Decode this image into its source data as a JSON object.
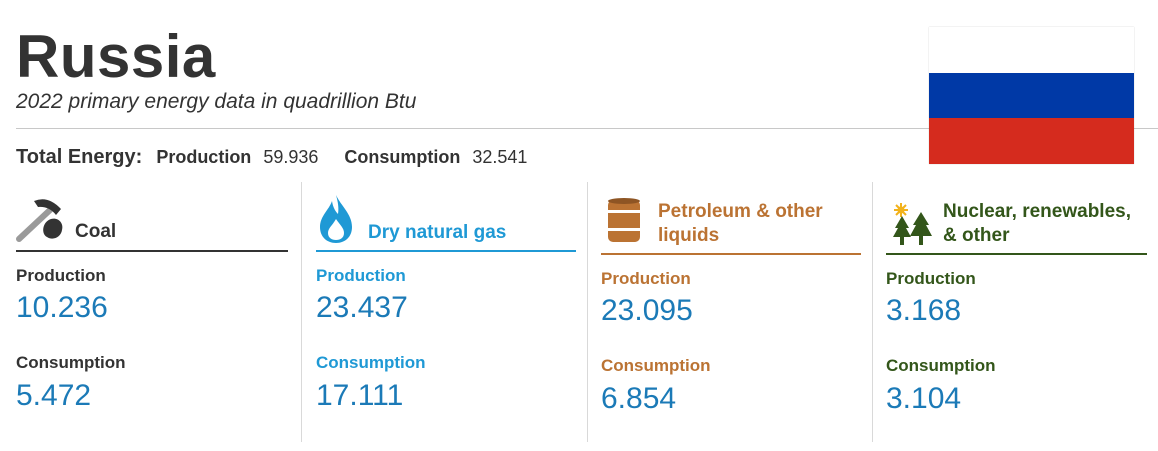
{
  "header": {
    "title": "Russia",
    "subtitle": "2022 primary energy data in quadrillion Btu"
  },
  "flag": {
    "country": "Russia",
    "stripe_colors": [
      "#ffffff",
      "#0039a6",
      "#d52b1e"
    ]
  },
  "totals": {
    "label": "Total Energy:",
    "production_label": "Production",
    "production_value": "59.936",
    "consumption_label": "Consumption",
    "consumption_value": "32.541"
  },
  "colors": {
    "coal": "#333333",
    "gas": "#1f99d5",
    "petroleum": "#bb7333",
    "renewables": "#33561a",
    "value_blue": "#1b7ab7"
  },
  "sectors": [
    {
      "name": "Coal",
      "icon": "pickaxe-coal-icon",
      "production_label": "Production",
      "production_value": "10.236",
      "consumption_label": "Consumption",
      "consumption_value": "5.472"
    },
    {
      "name": "Dry natural gas",
      "icon": "gas-flame-icon",
      "production_label": "Production",
      "production_value": "23.437",
      "consumption_label": "Consumption",
      "consumption_value": "17.111"
    },
    {
      "name_line1": "Petroleum & other",
      "name_line2": "liquids",
      "icon": "oil-barrel-icon",
      "production_label": "Production",
      "production_value": "23.095",
      "consumption_label": "Consumption",
      "consumption_value": "6.854"
    },
    {
      "name_line1": "Nuclear, renewables,",
      "name_line2": "& other",
      "icon": "sun-trees-icon",
      "production_label": "Production",
      "production_value": "3.168",
      "consumption_label": "Consumption",
      "consumption_value": "3.104"
    }
  ]
}
